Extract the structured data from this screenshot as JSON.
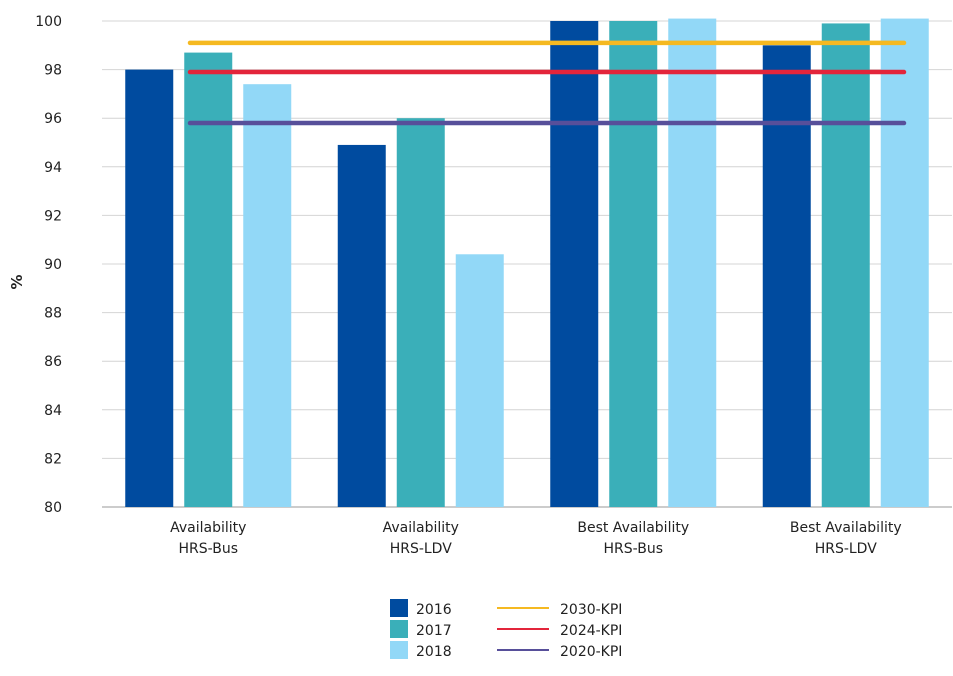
{
  "chart_data": {
    "type": "bar",
    "ylabel": "%",
    "ylim": [
      80,
      100
    ],
    "yticks": [
      "80",
      "82",
      "84",
      "86",
      "88",
      "90",
      "92",
      "94",
      "96",
      "98",
      "100"
    ],
    "grid": true,
    "legend_position": "bottom",
    "categories": [
      [
        "Availability",
        "HRS-Bus"
      ],
      [
        "Availability",
        "HRS-LDV"
      ],
      [
        "Best Availability",
        "HRS-Bus"
      ],
      [
        "Best Availability",
        "HRS-LDV"
      ]
    ],
    "series": [
      {
        "name": "2016",
        "color": "#004b9f",
        "values": [
          98.0,
          94.9,
          100.0,
          99.0
        ]
      },
      {
        "name": "2017",
        "color": "#3aafb9",
        "values": [
          98.7,
          96.0,
          100.0,
          99.9
        ]
      },
      {
        "name": "2018",
        "color": "#92d8f7",
        "values": [
          97.4,
          90.4,
          100.1,
          100.1
        ]
      }
    ],
    "kpi_lines": [
      {
        "name": "2030-KPI",
        "color": "#f5b921",
        "value": 99.1
      },
      {
        "name": "2024-KPI",
        "color": "#e3253b",
        "value": 97.9
      },
      {
        "name": "2020-KPI",
        "color": "#574f9a",
        "value": 95.8
      }
    ]
  }
}
